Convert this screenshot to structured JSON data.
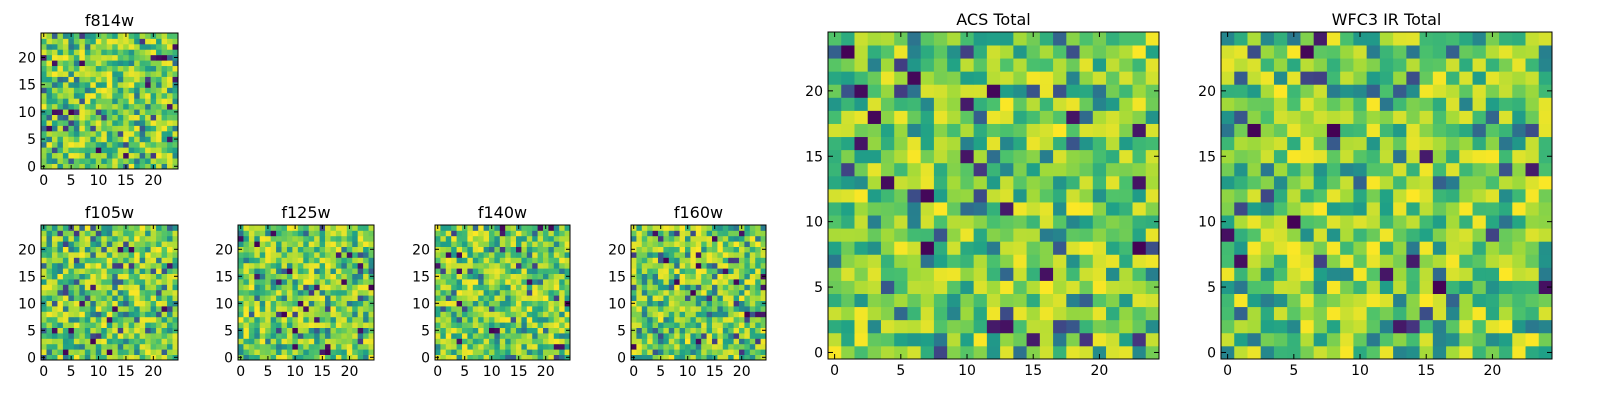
{
  "figure_title": "",
  "chart_data": [
    {
      "type": "heatmap",
      "name": "f814w",
      "title": "f814w",
      "grid_size": 25,
      "seed": 11,
      "colormap": "viridis",
      "value_range": [
        0,
        1
      ],
      "origin": "lower",
      "xticks": [
        0,
        5,
        10,
        15,
        20
      ],
      "yticks": [
        0,
        5,
        10,
        15,
        20
      ],
      "xlim": [
        -0.5,
        24.5
      ],
      "ylim": [
        -0.5,
        24.5
      ]
    },
    {
      "type": "heatmap",
      "name": "f105w",
      "title": "f105w",
      "grid_size": 25,
      "seed": 23,
      "colormap": "viridis",
      "value_range": [
        0,
        1
      ],
      "origin": "lower",
      "xticks": [
        0,
        5,
        10,
        15,
        20
      ],
      "yticks": [
        0,
        5,
        10,
        15,
        20
      ],
      "xlim": [
        -0.5,
        24.5
      ],
      "ylim": [
        -0.5,
        24.5
      ]
    },
    {
      "type": "heatmap",
      "name": "f125w",
      "title": "f125w",
      "grid_size": 25,
      "seed": 37,
      "colormap": "viridis",
      "value_range": [
        0,
        1
      ],
      "origin": "lower",
      "xticks": [
        0,
        5,
        10,
        15,
        20
      ],
      "yticks": [
        0,
        5,
        10,
        15,
        20
      ],
      "xlim": [
        -0.5,
        24.5
      ],
      "ylim": [
        -0.5,
        24.5
      ]
    },
    {
      "type": "heatmap",
      "name": "f140w",
      "title": "f140w",
      "grid_size": 25,
      "seed": 41,
      "colormap": "viridis",
      "value_range": [
        0,
        1
      ],
      "origin": "lower",
      "xticks": [
        0,
        5,
        10,
        15,
        20
      ],
      "yticks": [
        0,
        5,
        10,
        15,
        20
      ],
      "xlim": [
        -0.5,
        24.5
      ],
      "ylim": [
        -0.5,
        24.5
      ]
    },
    {
      "type": "heatmap",
      "name": "f160w",
      "title": "f160w",
      "grid_size": 25,
      "seed": 53,
      "colormap": "viridis",
      "value_range": [
        0,
        1
      ],
      "origin": "lower",
      "xticks": [
        0,
        5,
        10,
        15,
        20
      ],
      "yticks": [
        0,
        5,
        10,
        15,
        20
      ],
      "xlim": [
        -0.5,
        24.5
      ],
      "ylim": [
        -0.5,
        24.5
      ]
    },
    {
      "type": "heatmap",
      "name": "acs-total",
      "title": "ACS Total",
      "grid_size": 25,
      "seed": 67,
      "colormap": "viridis",
      "value_range": [
        0,
        1
      ],
      "origin": "lower",
      "xticks": [
        0,
        5,
        10,
        15,
        20
      ],
      "yticks": [
        0,
        5,
        10,
        15,
        20
      ],
      "xlim": [
        -0.5,
        24.5
      ],
      "ylim": [
        -0.5,
        24.5
      ]
    },
    {
      "type": "heatmap",
      "name": "wfc3-ir-total",
      "title": "WFC3 IR Total",
      "grid_size": 25,
      "seed": 79,
      "colormap": "viridis",
      "value_range": [
        0,
        1
      ],
      "origin": "lower",
      "xticks": [
        0,
        5,
        10,
        15,
        20
      ],
      "yticks": [
        0,
        5,
        10,
        15,
        20
      ],
      "xlim": [
        -0.5,
        24.5
      ],
      "ylim": [
        -0.5,
        24.5
      ]
    }
  ],
  "colors": {
    "viridis": [
      "#440154",
      "#46327e",
      "#365c8d",
      "#277f8e",
      "#1fa187",
      "#4ac16d",
      "#a0da39",
      "#fde725"
    ]
  }
}
